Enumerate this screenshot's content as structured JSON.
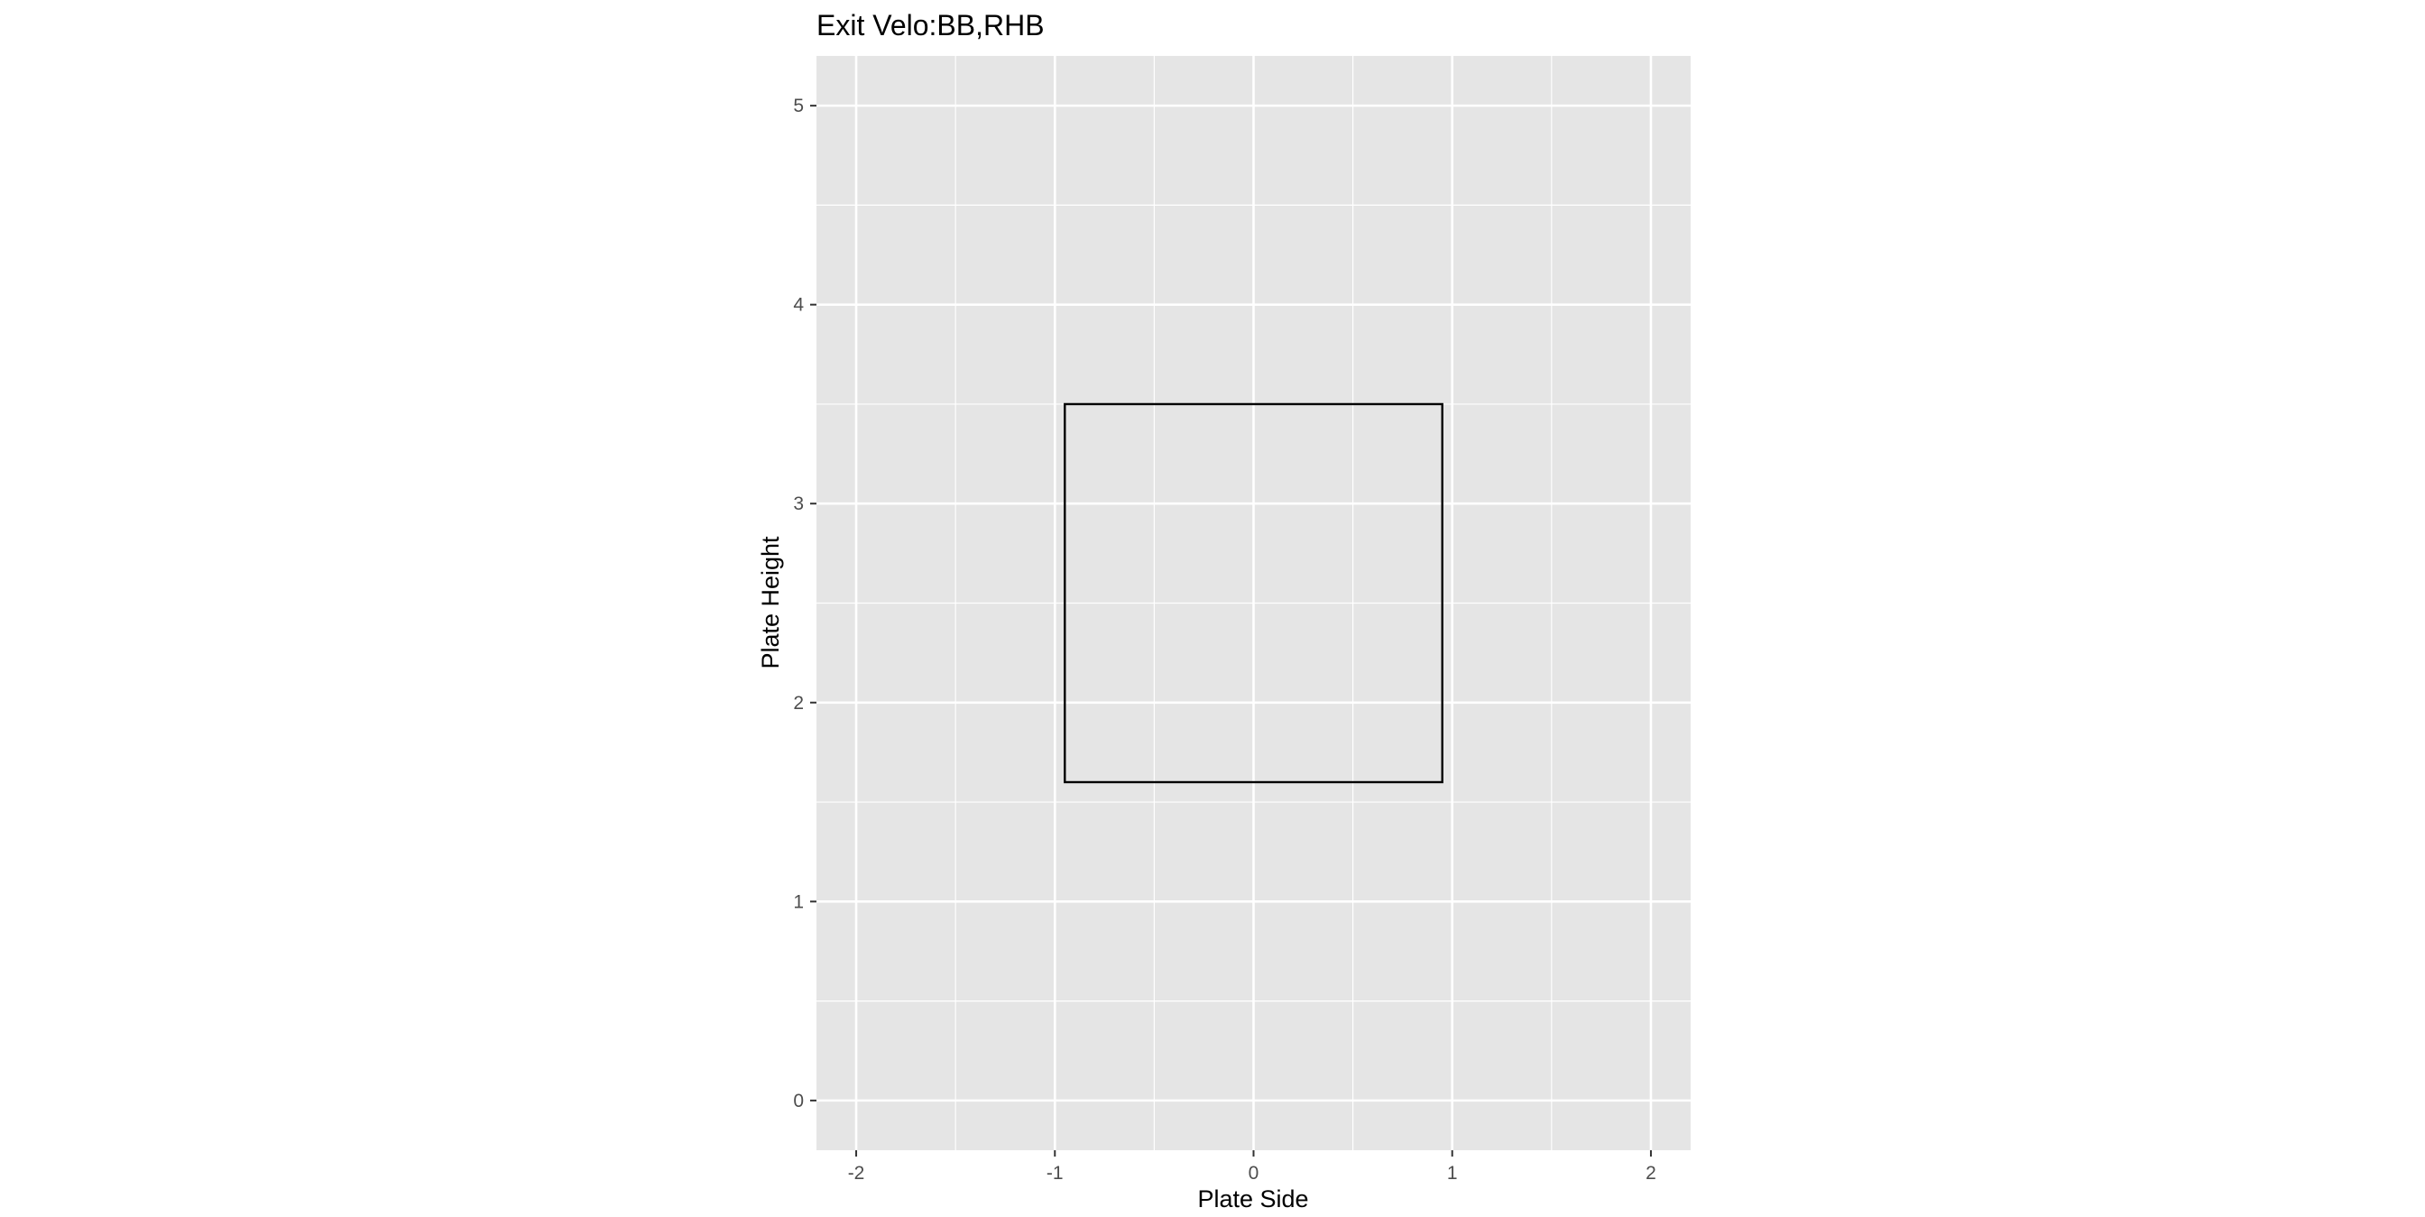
{
  "chart_data": {
    "type": "scatter",
    "title": "Exit Velo:BB,RHB",
    "xlabel": "Plate Side",
    "ylabel": "Plate Height",
    "xlim": [
      -2.2,
      2.2
    ],
    "ylim": [
      -0.25,
      5.25
    ],
    "x_ticks": [
      -2,
      -1,
      0,
      1,
      2
    ],
    "x_tick_labels": [
      "-2",
      "-1",
      "0",
      "1",
      "2"
    ],
    "y_ticks": [
      0,
      1,
      2,
      3,
      4,
      5
    ],
    "y_tick_labels": [
      "0",
      "1",
      "2",
      "3",
      "4",
      "5"
    ],
    "x_minor_ticks": [
      -1.5,
      -0.5,
      0.5,
      1.5
    ],
    "y_minor_ticks": [
      0.5,
      1.5,
      2.5,
      3.5,
      4.5
    ],
    "grid": true,
    "panel_background": "#e5e5e5",
    "grid_color": "#ffffff",
    "strike_zone": {
      "x_min": -0.95,
      "x_max": 0.95,
      "y_min": 1.6,
      "y_max": 3.5,
      "color": "#000000"
    },
    "series": []
  }
}
